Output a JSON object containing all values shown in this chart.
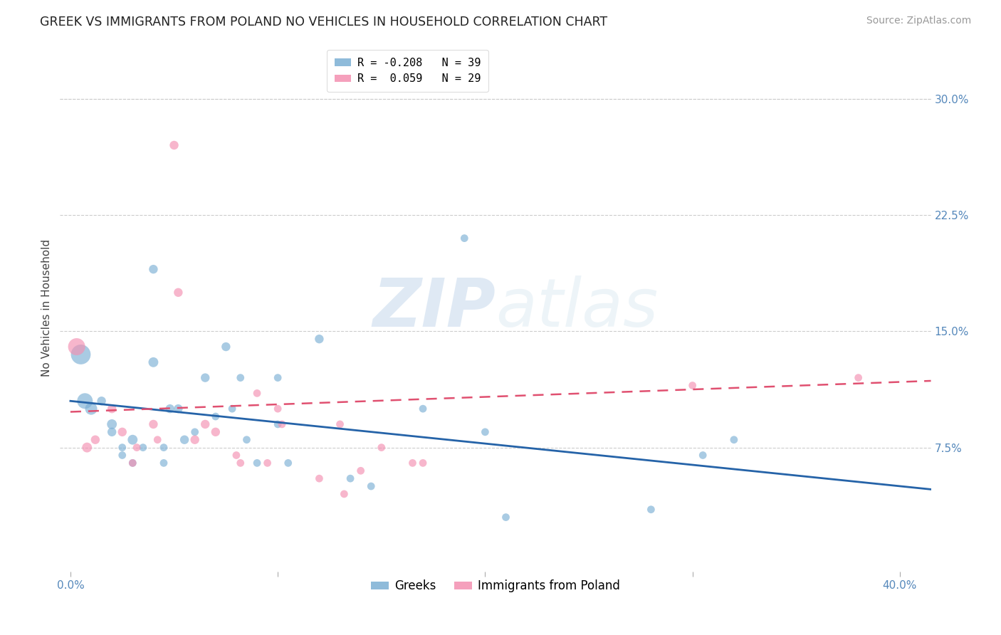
{
  "title": "GREEK VS IMMIGRANTS FROM POLAND NO VEHICLES IN HOUSEHOLD CORRELATION CHART",
  "source": "Source: ZipAtlas.com",
  "ylabel": "No Vehicles in Household",
  "xlabel_ticks": [
    "0.0%",
    "",
    "",
    "",
    "40.0%"
  ],
  "xlabel_vals": [
    0.0,
    0.1,
    0.2,
    0.3,
    0.4
  ],
  "ylabel_ticks": [
    "7.5%",
    "15.0%",
    "22.5%",
    "30.0%"
  ],
  "ylabel_vals": [
    0.075,
    0.15,
    0.225,
    0.3
  ],
  "xlim": [
    -0.005,
    0.415
  ],
  "ylim": [
    -0.005,
    0.335
  ],
  "legend_r_entries": [
    {
      "label": "R = -0.208   N = 39",
      "color": "#a8c4e0"
    },
    {
      "label": "R =  0.059   N = 29",
      "color": "#f4a7b9"
    }
  ],
  "legend_names": [
    "Greeks",
    "Immigrants from Poland"
  ],
  "watermark_zip": "ZIP",
  "watermark_atlas": "atlas",
  "blue_color": "#7bafd4",
  "pink_color": "#f48fb1",
  "trendline_blue": "#2563a8",
  "trendline_pink": "#e05070",
  "greeks_x": [
    0.005,
    0.007,
    0.01,
    0.015,
    0.02,
    0.02,
    0.025,
    0.025,
    0.03,
    0.03,
    0.035,
    0.04,
    0.04,
    0.045,
    0.045,
    0.048,
    0.052,
    0.055,
    0.06,
    0.065,
    0.07,
    0.075,
    0.078,
    0.082,
    0.085,
    0.09,
    0.1,
    0.1,
    0.105,
    0.12,
    0.135,
    0.145,
    0.17,
    0.19,
    0.2,
    0.21,
    0.28,
    0.305,
    0.32
  ],
  "greeks_y": [
    0.135,
    0.105,
    0.1,
    0.105,
    0.09,
    0.085,
    0.075,
    0.07,
    0.065,
    0.08,
    0.075,
    0.19,
    0.13,
    0.075,
    0.065,
    0.1,
    0.1,
    0.08,
    0.085,
    0.12,
    0.095,
    0.14,
    0.1,
    0.12,
    0.08,
    0.065,
    0.12,
    0.09,
    0.065,
    0.145,
    0.055,
    0.05,
    0.1,
    0.21,
    0.085,
    0.03,
    0.035,
    0.07,
    0.08
  ],
  "greeks_size": [
    400,
    250,
    150,
    80,
    100,
    80,
    60,
    60,
    60,
    100,
    60,
    80,
    100,
    60,
    60,
    80,
    80,
    80,
    60,
    80,
    60,
    80,
    60,
    60,
    60,
    60,
    60,
    60,
    60,
    80,
    60,
    60,
    60,
    60,
    60,
    60,
    60,
    60,
    60
  ],
  "poland_x": [
    0.003,
    0.008,
    0.012,
    0.02,
    0.025,
    0.03,
    0.032,
    0.04,
    0.042,
    0.05,
    0.052,
    0.06,
    0.065,
    0.07,
    0.08,
    0.082,
    0.09,
    0.095,
    0.1,
    0.102,
    0.12,
    0.13,
    0.132,
    0.14,
    0.15,
    0.165,
    0.17,
    0.3,
    0.38
  ],
  "poland_y": [
    0.14,
    0.075,
    0.08,
    0.1,
    0.085,
    0.065,
    0.075,
    0.09,
    0.08,
    0.27,
    0.175,
    0.08,
    0.09,
    0.085,
    0.07,
    0.065,
    0.11,
    0.065,
    0.1,
    0.09,
    0.055,
    0.09,
    0.045,
    0.06,
    0.075,
    0.065,
    0.065,
    0.115,
    0.12
  ],
  "poland_size": [
    300,
    100,
    80,
    80,
    80,
    60,
    60,
    80,
    60,
    80,
    80,
    80,
    80,
    80,
    60,
    60,
    60,
    60,
    60,
    60,
    60,
    60,
    60,
    60,
    60,
    60,
    60,
    60,
    60
  ],
  "blue_trendline_x": [
    0.0,
    0.415
  ],
  "blue_trendline_y": [
    0.105,
    0.048
  ],
  "pink_trendline_x": [
    0.0,
    0.415
  ],
  "pink_trendline_y": [
    0.098,
    0.118
  ],
  "grid_color": "#cccccc",
  "tick_color": "#5588bb",
  "title_color": "#222222",
  "source_color": "#999999"
}
